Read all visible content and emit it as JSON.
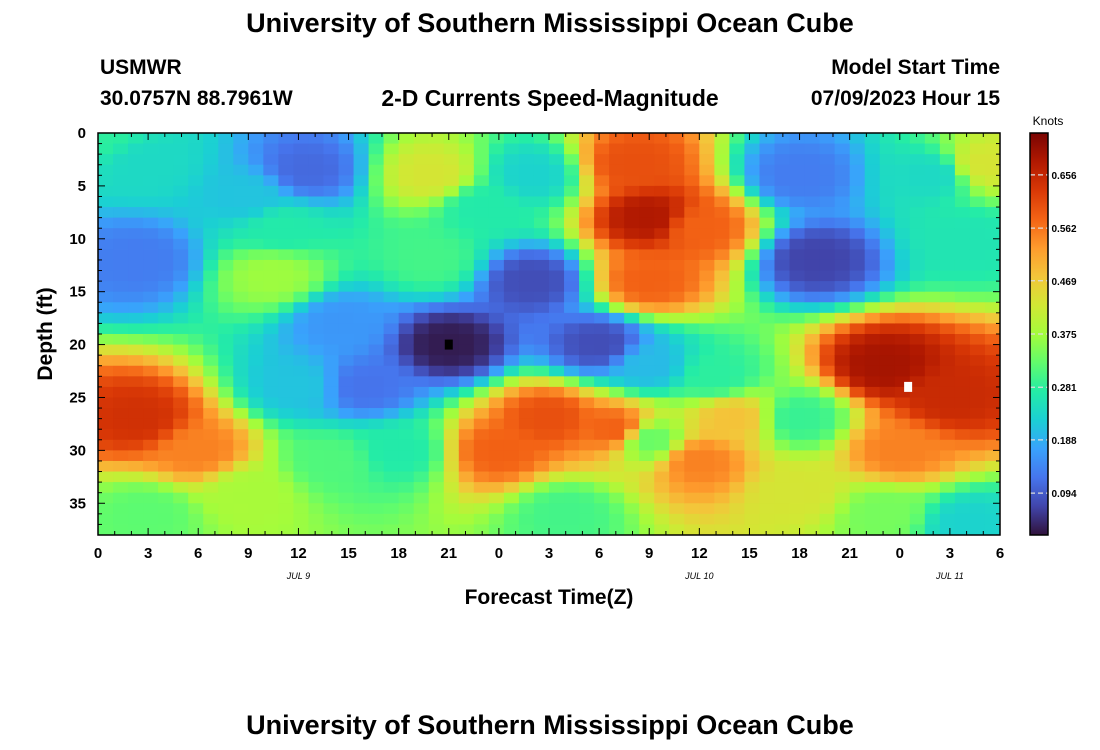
{
  "header": {
    "title": "University of Southern Mississippi Ocean Cube",
    "station": "USMWR",
    "coords": "30.0757N  88.7961W",
    "product": "2-D Currents Speed-Magnitude",
    "model_label": "Model Start Time",
    "model_time": "07/09/2023 Hour 15"
  },
  "footer": {
    "title": "University of Southern Mississippi Ocean Cube"
  },
  "chart_data": {
    "type": "heatmap",
    "xlabel": "Forecast Time(Z)",
    "ylabel": "Depth (ft)",
    "x_range_hours": [
      0,
      54
    ],
    "y_range": [
      0,
      38
    ],
    "y_inverted": true,
    "x_ticks": [
      "0",
      "3",
      "6",
      "9",
      "12",
      "15",
      "18",
      "21",
      "0",
      "3",
      "6",
      "9",
      "12",
      "15",
      "18",
      "21",
      "0",
      "3",
      "6"
    ],
    "y_ticks": [
      "0",
      "5",
      "10",
      "15",
      "20",
      "25",
      "30",
      "35"
    ],
    "date_labels": [
      {
        "text": "JUL 9",
        "hour": 12
      },
      {
        "text": "JUL 10",
        "hour": 36
      },
      {
        "text": "JUL 11",
        "hour": 51
      }
    ],
    "colorbar": {
      "unit": "Knots",
      "ticks": [
        "0.094",
        "0.188",
        "0.281",
        "0.375",
        "0.469",
        "0.562",
        "0.656"
      ],
      "range": [
        0.02,
        0.73
      ],
      "stops": [
        "#30123b",
        "#4145ab",
        "#4675ed",
        "#39a2fc",
        "#1bcfd4",
        "#24eca6",
        "#61fc6c",
        "#a4fc3b",
        "#d1e834",
        "#f3c63a",
        "#fe9b2d",
        "#f36315",
        "#d93806",
        "#b11901",
        "#7a0402"
      ]
    },
    "grid_resolution": {
      "x_step_hours": 0.9,
      "y_step_ft": 1.0
    },
    "field_peaks": [
      {
        "x": 0,
        "y": 0,
        "v": 0.28
      },
      {
        "x": 2.5,
        "y": 12,
        "v": 0.13
      },
      {
        "x": 3,
        "y": 3,
        "v": 0.24
      },
      {
        "x": 2.5,
        "y": 27,
        "v": 0.64
      },
      {
        "x": 6,
        "y": 30,
        "v": 0.55
      },
      {
        "x": 3,
        "y": 36,
        "v": 0.32
      },
      {
        "x": 10.5,
        "y": 13.5,
        "v": 0.37
      },
      {
        "x": 11,
        "y": 9,
        "v": 0.27
      },
      {
        "x": 12.5,
        "y": 3.5,
        "v": 0.11
      },
      {
        "x": 9,
        "y": 6,
        "v": 0.21
      },
      {
        "x": 14.5,
        "y": 18,
        "v": 0.16
      },
      {
        "x": 16,
        "y": 24,
        "v": 0.12
      },
      {
        "x": 12,
        "y": 24,
        "v": 0.21
      },
      {
        "x": 14,
        "y": 31,
        "v": 0.31
      },
      {
        "x": 9,
        "y": 34,
        "v": 0.38
      },
      {
        "x": 20,
        "y": 4,
        "v": 0.43
      },
      {
        "x": 20,
        "y": 12,
        "v": 0.3
      },
      {
        "x": 21,
        "y": 20,
        "v": 0.03
      },
      {
        "x": 18,
        "y": 30,
        "v": 0.27
      },
      {
        "x": 26,
        "y": 14,
        "v": 0.08
      },
      {
        "x": 26,
        "y": 4,
        "v": 0.23
      },
      {
        "x": 23,
        "y": 7,
        "v": 0.27
      },
      {
        "x": 27,
        "y": 27,
        "v": 0.6
      },
      {
        "x": 24,
        "y": 30,
        "v": 0.58
      },
      {
        "x": 31,
        "y": 28,
        "v": 0.58
      },
      {
        "x": 30,
        "y": 20,
        "v": 0.08
      },
      {
        "x": 32,
        "y": 3,
        "v": 0.6
      },
      {
        "x": 33,
        "y": 8,
        "v": 0.68
      },
      {
        "x": 33,
        "y": 14,
        "v": 0.58
      },
      {
        "x": 36,
        "y": 9,
        "v": 0.58
      },
      {
        "x": 33,
        "y": 22,
        "v": 0.2
      },
      {
        "x": 33,
        "y": 29,
        "v": 0.33
      },
      {
        "x": 36,
        "y": 31,
        "v": 0.55
      },
      {
        "x": 38,
        "y": 27,
        "v": 0.48
      },
      {
        "x": 37,
        "y": 23,
        "v": 0.28
      },
      {
        "x": 42,
        "y": 27,
        "v": 0.29
      },
      {
        "x": 42,
        "y": 34,
        "v": 0.43
      },
      {
        "x": 43,
        "y": 12,
        "v": 0.07
      },
      {
        "x": 42,
        "y": 4,
        "v": 0.13
      },
      {
        "x": 47,
        "y": 22,
        "v": 0.69
      },
      {
        "x": 51,
        "y": 25,
        "v": 0.65
      },
      {
        "x": 48,
        "y": 30,
        "v": 0.55
      },
      {
        "x": 50,
        "y": 4,
        "v": 0.24
      },
      {
        "x": 53,
        "y": 3,
        "v": 0.43
      },
      {
        "x": 52,
        "y": 10,
        "v": 0.26
      },
      {
        "x": 47,
        "y": 36,
        "v": 0.34
      },
      {
        "x": 28,
        "y": 36,
        "v": 0.3
      },
      {
        "x": 52,
        "y": 37,
        "v": 0.23
      }
    ],
    "markers": [
      {
        "x": 21,
        "y": 20,
        "color": "#000000"
      },
      {
        "x": 48.5,
        "y": 24,
        "color": "#ffffff"
      }
    ]
  }
}
